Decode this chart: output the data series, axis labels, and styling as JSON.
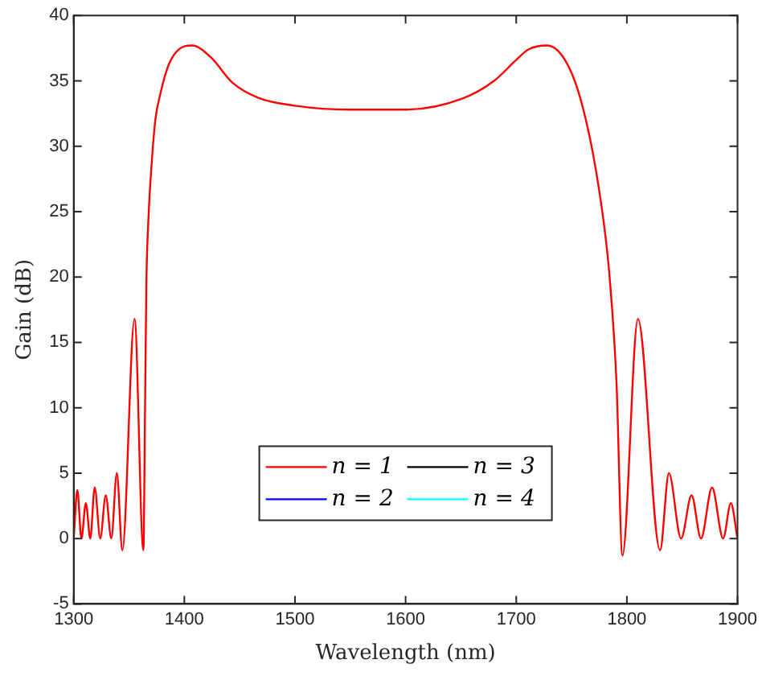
{
  "chart_data": {
    "type": "line",
    "xlabel": "Wavelength (nm)",
    "ylabel": "Gain (dB)",
    "x": [
      1300,
      1303.3,
      1307,
      1311,
      1315,
      1319,
      1324,
      1329,
      1334,
      1339,
      1344,
      1355,
      1363,
      1364.5,
      1365.7,
      1367.6,
      1370.5,
      1373.8,
      1378.6,
      1385.7,
      1395,
      1407,
      1424,
      1443,
      1467,
      1500,
      1550,
      1600,
      1650,
      1680,
      1700,
      1711,
      1728,
      1749,
      1763,
      1775,
      1784,
      1790.6,
      1796,
      1810,
      1830,
      1838,
      1849,
      1858.5,
      1867,
      1877,
      1887,
      1894,
      1900
    ],
    "series": [
      {
        "name": "n = 1",
        "color": "#ff0000",
        "values": [
          0,
          3.7,
          0,
          2.7,
          0,
          3.9,
          0,
          3.3,
          0,
          5.0,
          -0.9,
          16.8,
          -0.9,
          10,
          19.5,
          24.5,
          28.7,
          32,
          34.1,
          36.2,
          37.4,
          37.7,
          36.8,
          34.9,
          33.7,
          33.1,
          32.8,
          32.8,
          33.6,
          35.0,
          36.6,
          37.4,
          37.7,
          35.8,
          32,
          26.6,
          20.4,
          12,
          -1.3,
          16.8,
          -0.9,
          5.0,
          0,
          3.3,
          0,
          3.9,
          0,
          2.7,
          0
        ]
      },
      {
        "name": "n = 2",
        "color": "#0000ff",
        "values": [
          null,
          null,
          null,
          null,
          null,
          null,
          null,
          null,
          null,
          null,
          null,
          null,
          null,
          null,
          null,
          null,
          null,
          null,
          null,
          null,
          null,
          null,
          null,
          null,
          null,
          null,
          null,
          null,
          null,
          null,
          null,
          null,
          null,
          null,
          null,
          null,
          null,
          null,
          null,
          null,
          null,
          null,
          null,
          null,
          null,
          null,
          null,
          null,
          null
        ]
      },
      {
        "name": "n = 3",
        "color": "#000000",
        "values": [
          null,
          null,
          null,
          null,
          null,
          null,
          null,
          null,
          null,
          null,
          null,
          null,
          null,
          null,
          null,
          null,
          null,
          null,
          null,
          null,
          null,
          null,
          null,
          null,
          null,
          null,
          null,
          null,
          null,
          null,
          null,
          null,
          null,
          null,
          null,
          null,
          null,
          null,
          null,
          null,
          null,
          null,
          null,
          null,
          null,
          null,
          null,
          null,
          null
        ]
      },
      {
        "name": "n = 4",
        "color": "#00ffff",
        "values": [
          null,
          null,
          null,
          null,
          null,
          null,
          null,
          null,
          null,
          null,
          null,
          null,
          null,
          null,
          null,
          null,
          null,
          null,
          null,
          null,
          null,
          null,
          null,
          null,
          null,
          null,
          null,
          null,
          null,
          null,
          null,
          null,
          null,
          null,
          null,
          null,
          null,
          null,
          null,
          null,
          null,
          null,
          null,
          null,
          null,
          null,
          null,
          null,
          null
        ]
      }
    ],
    "xlim": [
      1300,
      1900
    ],
    "xticks": [
      1300,
      1400,
      1500,
      1600,
      1700,
      1800,
      1900
    ],
    "ylim": [
      -5,
      40
    ],
    "yticks": [
      -5,
      0,
      5,
      10,
      15,
      20,
      25,
      30,
      35,
      40
    ],
    "legend": "bottom",
    "marker": "none",
    "line_style": "solid"
  }
}
